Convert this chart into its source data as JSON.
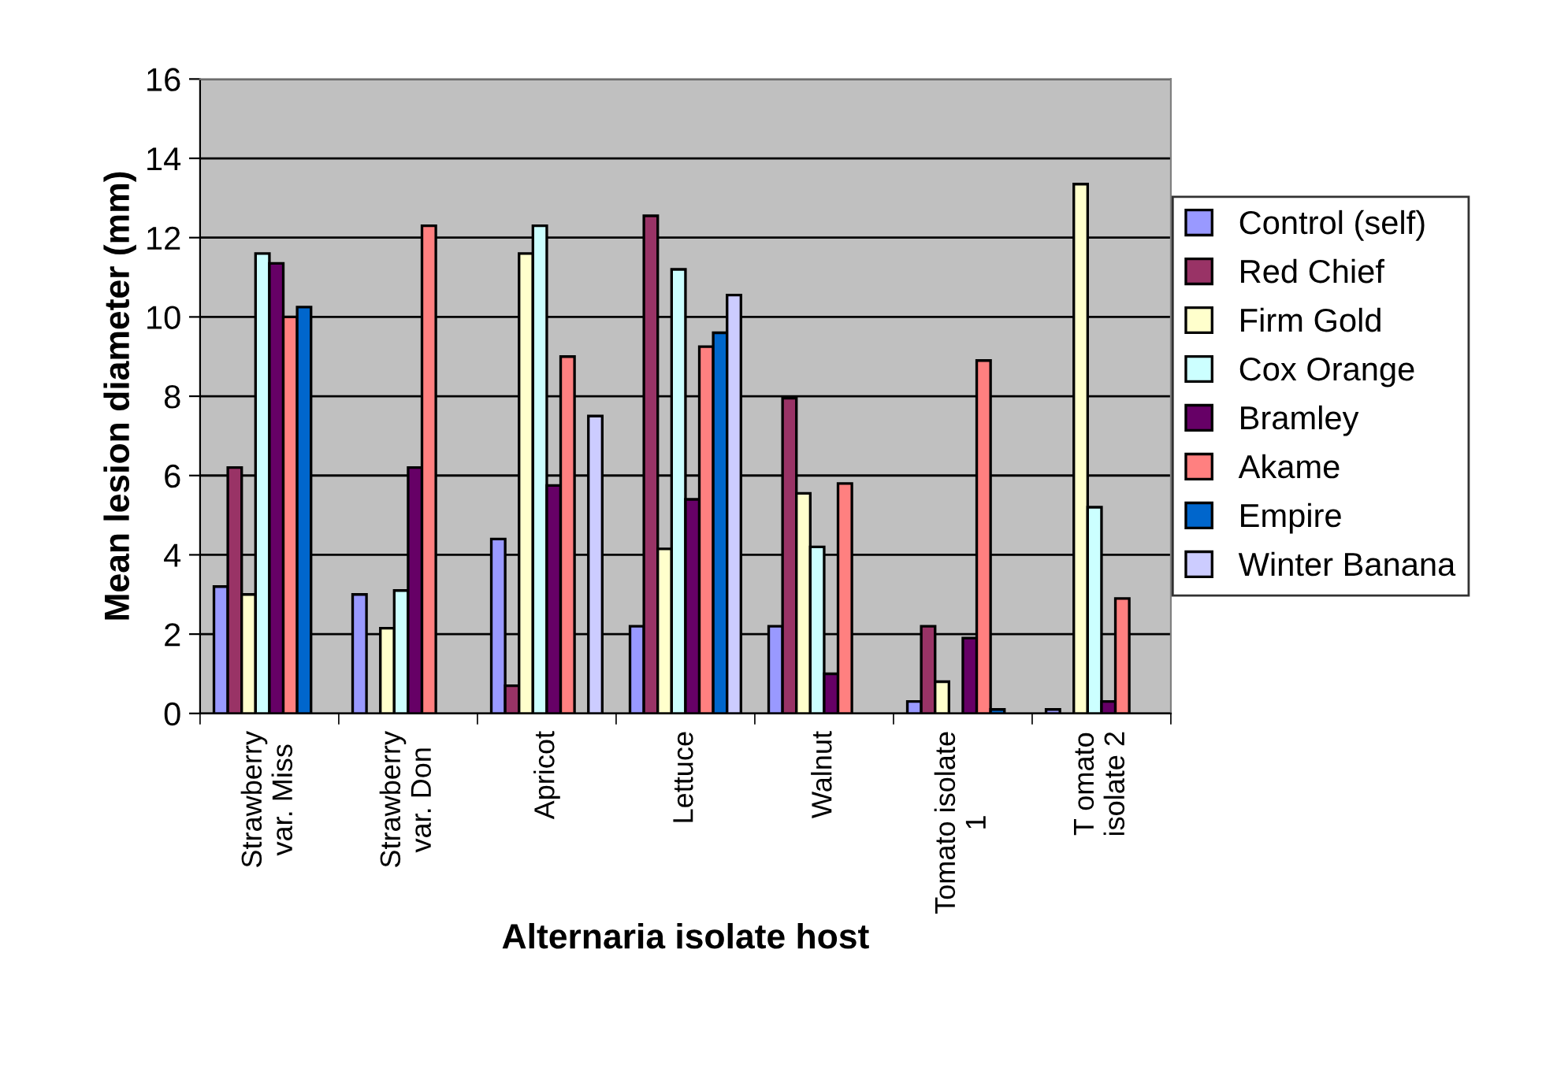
{
  "chart_data": {
    "type": "bar",
    "xlabel": "Alternaria isolate host",
    "ylabel": "Mean lesion diameter (mm)",
    "categories": [
      "Strawberry\nvar. Miss",
      "Strawberry\nvar. Don",
      "Apricot",
      "Lettuce",
      "Walnut",
      "Tomato isolate\n1",
      "T omato\nisolate 2"
    ],
    "series": [
      {
        "name": "Control (self)",
        "color": "#9999ff",
        "values": [
          3.2,
          3.0,
          4.4,
          2.2,
          2.2,
          0.3,
          0.1
        ]
      },
      {
        "name": "Red Chief",
        "color": "#993366",
        "values": [
          6.2,
          null,
          0.7,
          12.55,
          7.95,
          2.2,
          null
        ]
      },
      {
        "name": "Firm Gold",
        "color": "#ffffcc",
        "values": [
          3.0,
          2.15,
          11.6,
          4.15,
          5.55,
          0.8,
          13.35
        ]
      },
      {
        "name": "Cox Orange",
        "color": "#ccffff",
        "values": [
          11.6,
          3.1,
          12.3,
          11.2,
          4.2,
          null,
          5.2
        ]
      },
      {
        "name": "Bramley",
        "color": "#660066",
        "values": [
          11.35,
          6.2,
          5.75,
          5.4,
          1.0,
          1.9,
          0.3
        ]
      },
      {
        "name": "Akame",
        "color": "#ff8080",
        "values": [
          10.0,
          12.3,
          9.0,
          9.25,
          5.8,
          8.9,
          2.9
        ]
      },
      {
        "name": "Empire",
        "color": "#0066cc",
        "values": [
          10.25,
          null,
          null,
          9.6,
          null,
          0.1,
          null
        ]
      },
      {
        "name": "Winter Banana",
        "color": "#ccccff",
        "values": [
          null,
          null,
          7.5,
          10.55,
          null,
          null,
          null
        ]
      }
    ],
    "ylim": [
      0,
      16
    ],
    "yticks": [
      0,
      2,
      4,
      6,
      8,
      10,
      12,
      14,
      16
    ],
    "grid": "y",
    "legend": "right"
  }
}
